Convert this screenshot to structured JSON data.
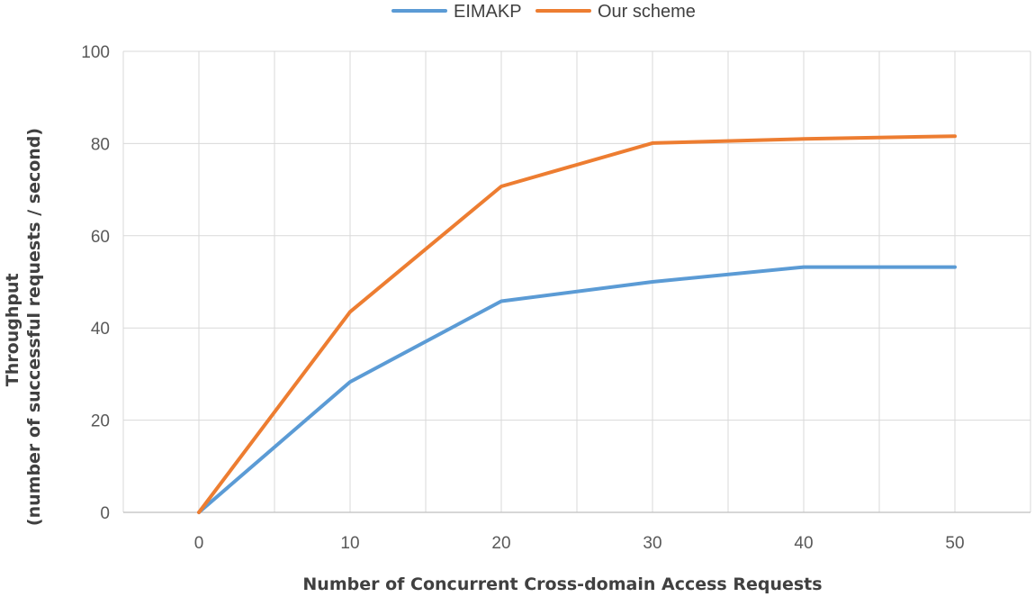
{
  "chart_data": {
    "type": "line",
    "title": "",
    "xlabel": "Number of Concurrent Cross-domain Access Requests",
    "ylabel": "Throughput (number of successful requests / second)",
    "ylabel_lines": [
      "Throughput",
      "(number of successful requests / second)"
    ],
    "x": [
      0,
      10,
      20,
      30,
      40,
      50
    ],
    "x_ticks": [
      "0",
      "10",
      "20",
      "30",
      "40",
      "50"
    ],
    "y_ticks": [
      "0",
      "20",
      "40",
      "60",
      "80",
      "100"
    ],
    "xlim": [
      -5,
      55
    ],
    "ylim": [
      0,
      100
    ],
    "grid": true,
    "legend_position": "top-center",
    "series": [
      {
        "name": "EIMAKP",
        "color": "#5b9bd5",
        "values": [
          0,
          28.3,
          45.8,
          50.0,
          53.2,
          53.2
        ]
      },
      {
        "name": "Our scheme",
        "color": "#ed7d31",
        "values": [
          0,
          43.5,
          70.7,
          80.1,
          81.0,
          81.6
        ]
      }
    ]
  }
}
